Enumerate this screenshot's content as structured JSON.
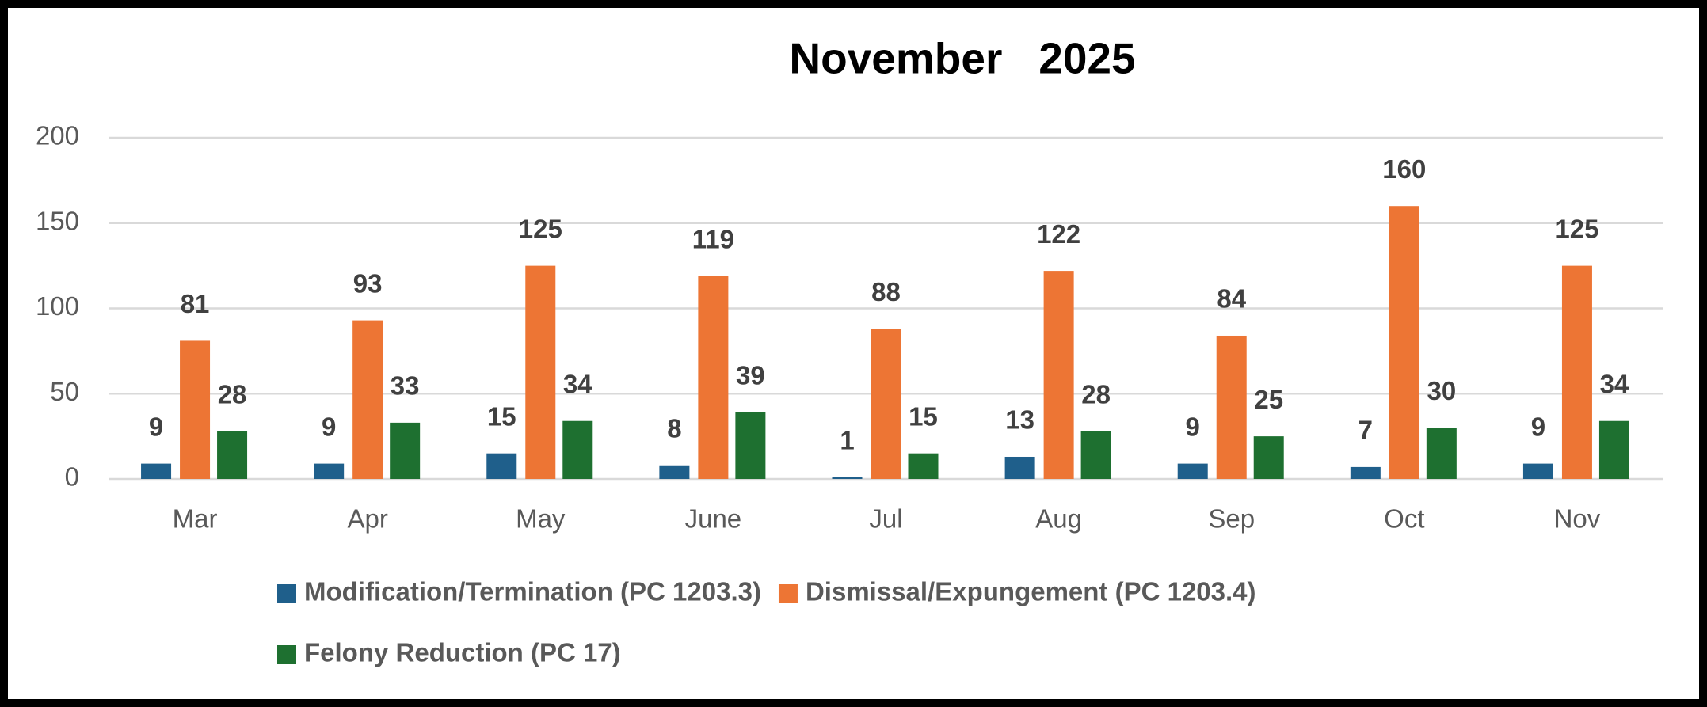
{
  "chart_data": {
    "type": "bar",
    "title": "November   2025",
    "categories": [
      "Mar",
      "Apr",
      "May",
      "June",
      "Jul",
      "Aug",
      "Sep",
      "Oct",
      "Nov"
    ],
    "series": [
      {
        "name": "Modification/Termination (PC 1203.3)",
        "color": "#1f5f8b",
        "values": [
          9,
          9,
          15,
          8,
          1,
          13,
          9,
          7,
          9
        ]
      },
      {
        "name": "Dismissal/Expungement (PC 1203.4)",
        "color": "#ed7534",
        "values": [
          81,
          93,
          125,
          119,
          88,
          122,
          84,
          160,
          125
        ]
      },
      {
        "name": "Felony Reduction (PC 17)",
        "color": "#1e7030",
        "values": [
          28,
          33,
          34,
          39,
          15,
          28,
          25,
          30,
          34
        ]
      }
    ],
    "ylim": [
      0,
      200
    ],
    "yticks": [
      0,
      50,
      100,
      150,
      200
    ],
    "grid": true,
    "legend": "bottom"
  }
}
